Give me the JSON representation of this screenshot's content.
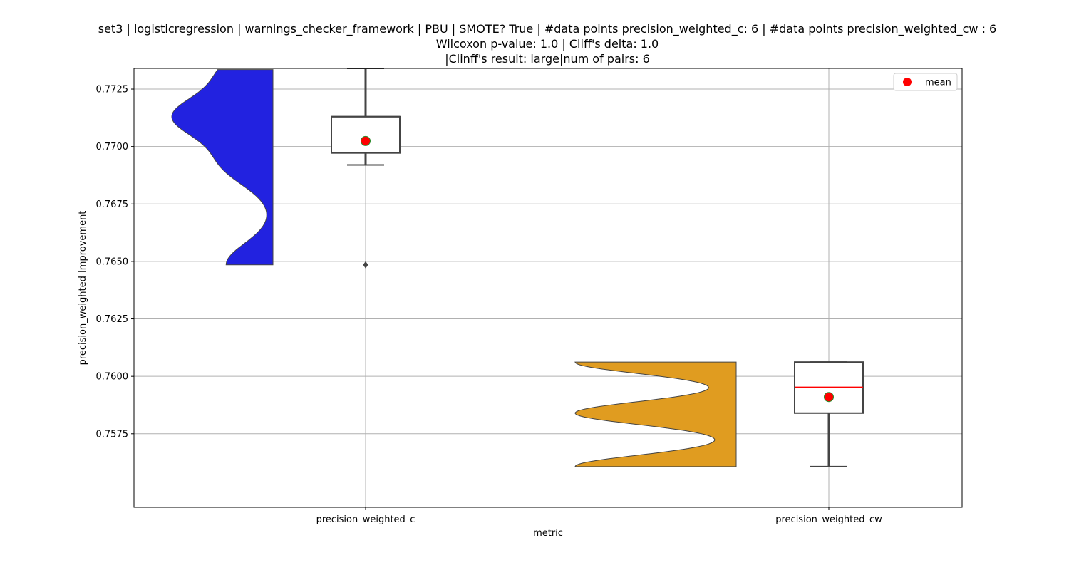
{
  "chart_data": {
    "type": "violin+box",
    "title_lines": [
      "set3 | logisticregression | warnings_checker_framework | PBU | SMOTE? True | #data points precision_weighted_c: 6 | #data points precision_weighted_cw : 6",
      "Wilcoxon p-value: 1.0 | Cliff's delta: 1.0",
      "|Clinff's result: large|num of pairs: 6"
    ],
    "xlabel": "metric",
    "ylabel": "precision_weighted Improvement",
    "categories": [
      "precision_weighted_c",
      "precision_weighted_cw"
    ],
    "ylim": [
      0.7543,
      0.7734
    ],
    "yticks": [
      0.7575,
      0.76,
      0.7625,
      0.765,
      0.7675,
      0.77,
      0.7725
    ],
    "ytick_labels": [
      "0.7575",
      "0.7600",
      "0.7625",
      "0.7650",
      "0.7675",
      "0.7700",
      "0.7725"
    ],
    "grid": true,
    "legend": {
      "position": "top-right",
      "entries": [
        {
          "label": "mean",
          "color": "#ff0000"
        }
      ]
    },
    "series": [
      {
        "name": "precision_weighted_c",
        "color": "#2222e0",
        "violin_min": 0.76485,
        "violin_max": 0.77335,
        "box": {
          "q1": 0.76972,
          "median": 0.7713,
          "q3": 0.7713,
          "whisker_low": 0.7692,
          "whisker_high": 0.7734
        },
        "mean": 0.77024,
        "outliers": [
          0.76485
        ],
        "points": [
          0.7734,
          0.7713,
          0.7713,
          0.7692,
          0.76485
        ]
      },
      {
        "name": "precision_weighted_cw",
        "color": "#e09c20",
        "violin_min": 0.75607,
        "violin_max": 0.76062,
        "box": {
          "q1": 0.7584,
          "median": 0.75952,
          "q3": 0.76062,
          "whisker_low": 0.75607,
          "whisker_high": 0.76062
        },
        "mean": 0.7591,
        "outliers": [],
        "points": [
          0.76062,
          0.7584,
          0.75607
        ]
      }
    ]
  }
}
